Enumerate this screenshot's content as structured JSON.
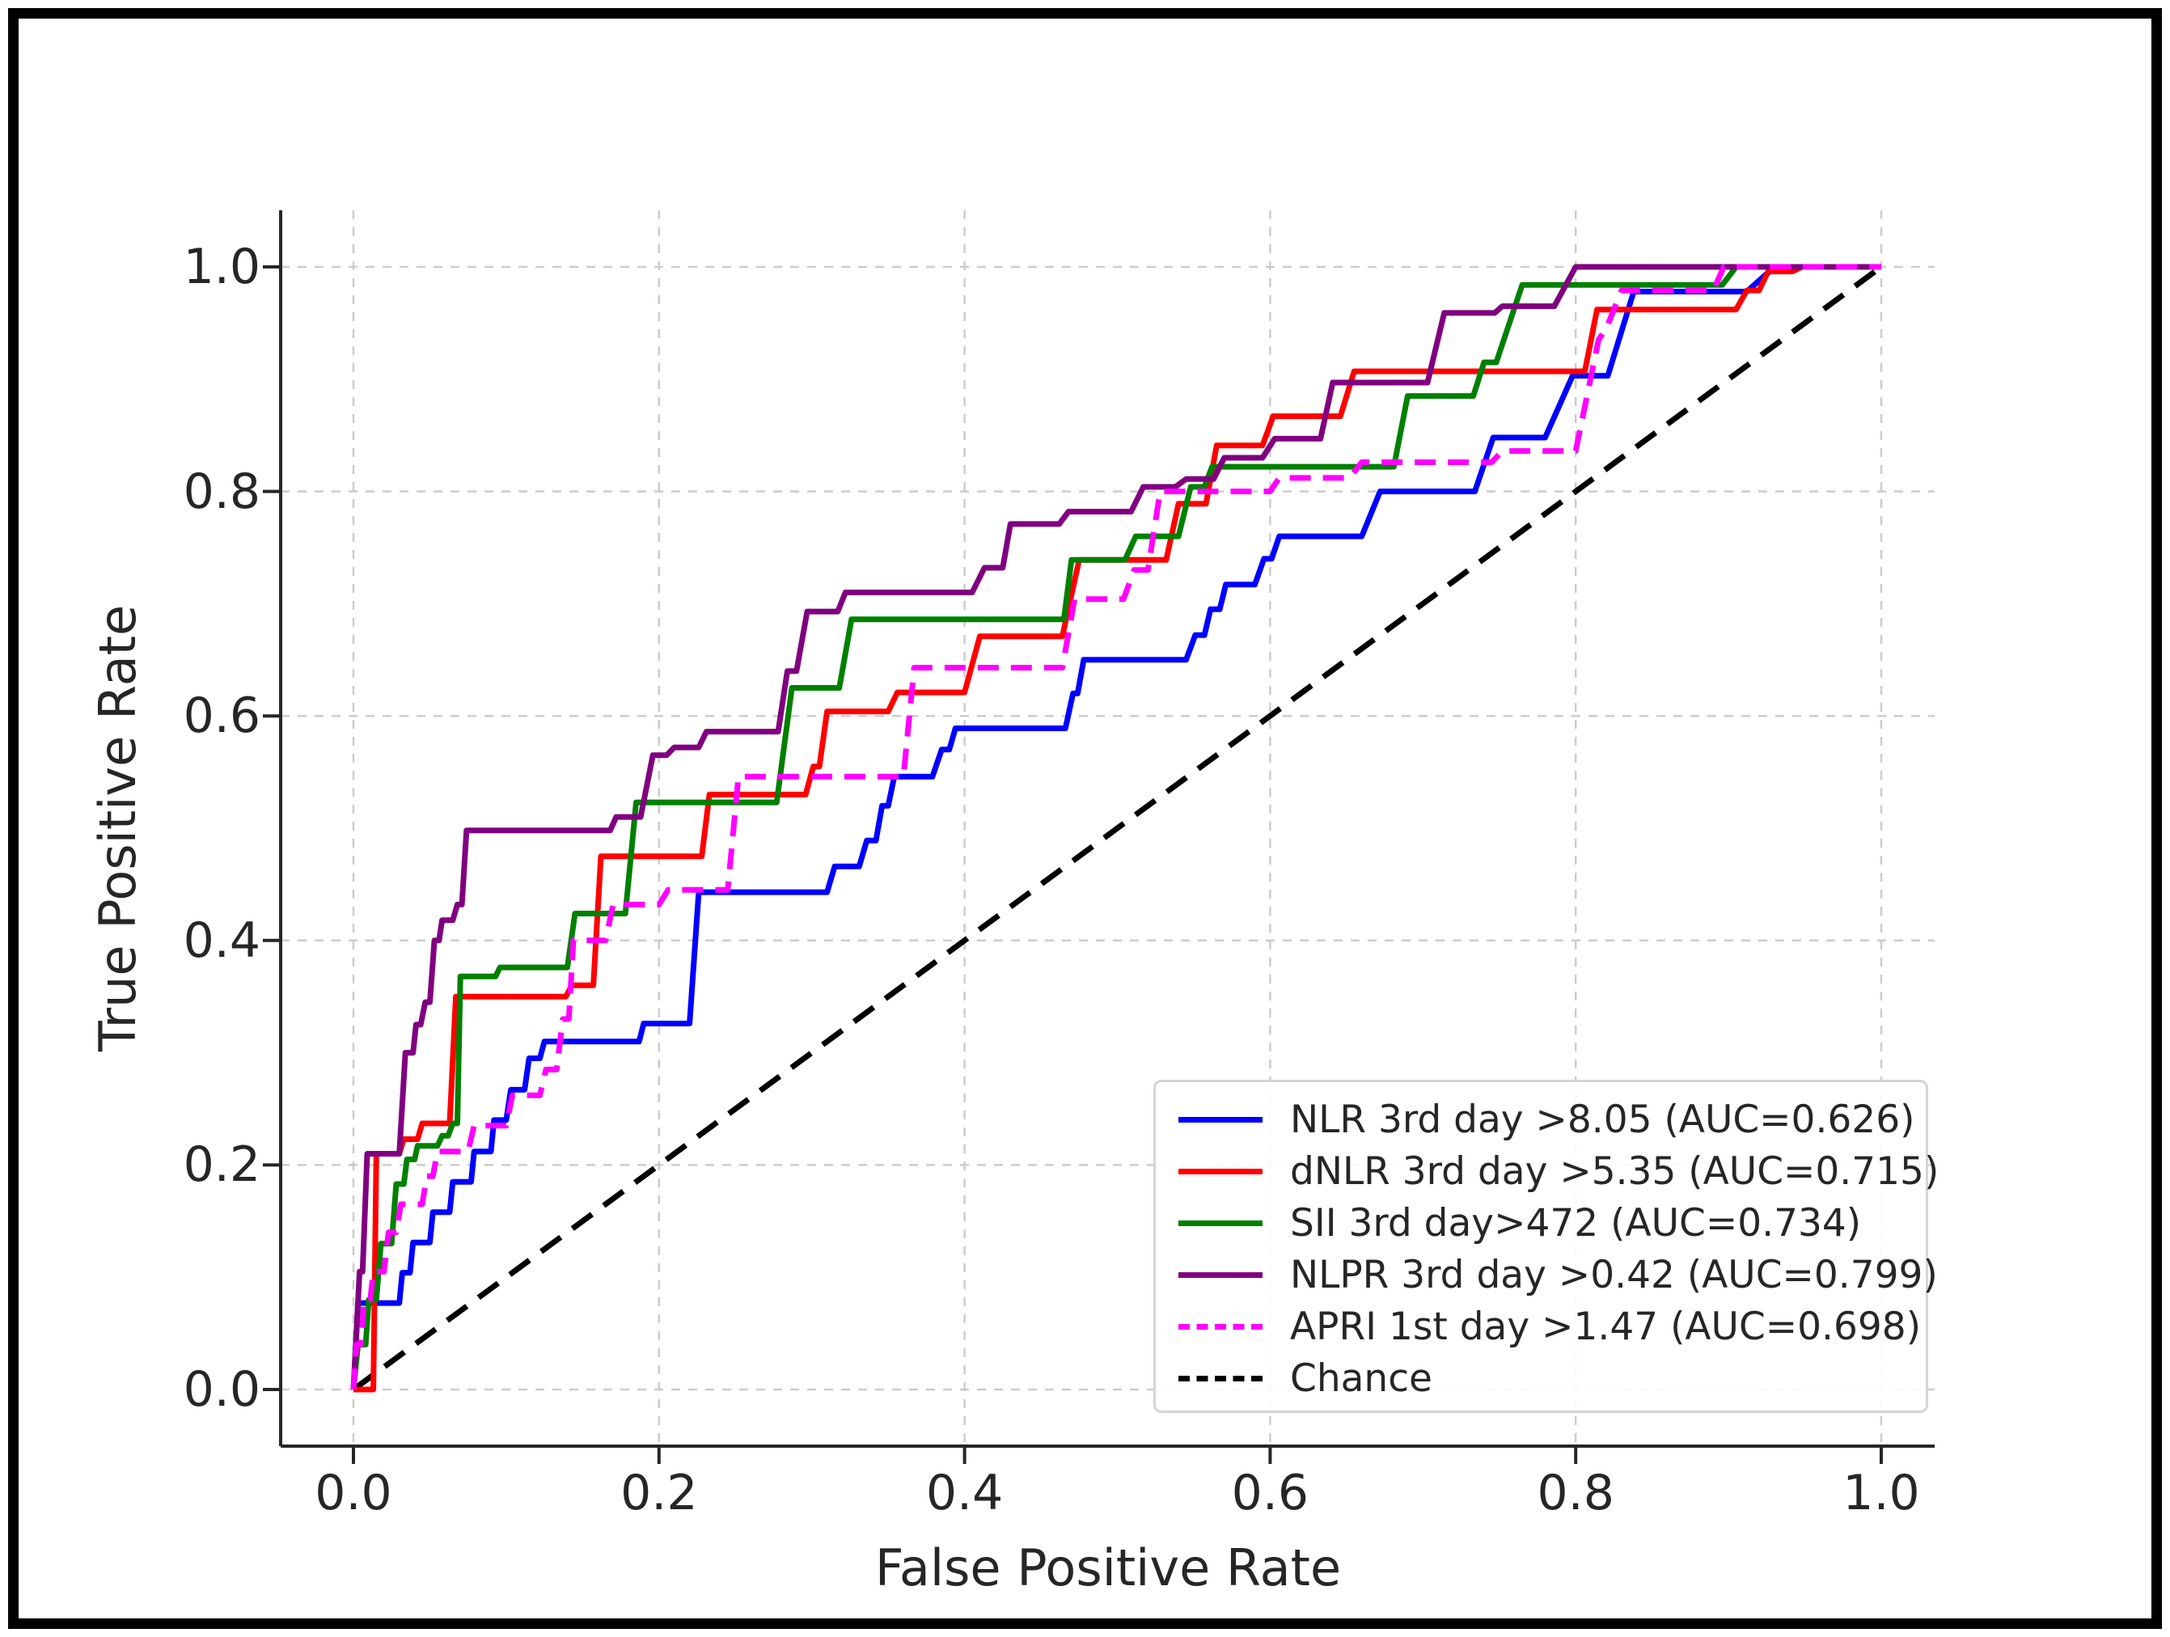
{
  "figure": {
    "background": "#ffffff",
    "border_color": "#000000"
  },
  "chart_data": {
    "type": "line",
    "subtype": "roc-curves",
    "title": "",
    "xlabel": "False Positive Rate",
    "ylabel": "True Positive Rate",
    "xlim": [
      -0.05,
      1.05
    ],
    "ylim": [
      -0.05,
      1.05
    ],
    "grid": true,
    "grid_color": "#cccccc",
    "legend_position": "lower right",
    "x_ticks": {
      "values": [
        0.0,
        0.2,
        0.4,
        0.6,
        0.8,
        1.0
      ],
      "labels": [
        "0.0",
        "0.2",
        "0.4",
        "0.6",
        "0.8",
        "1.0"
      ]
    },
    "y_ticks": {
      "values": [
        0.0,
        0.2,
        0.4,
        0.6,
        0.8,
        1.0
      ],
      "labels": [
        "0.0",
        "0.2",
        "0.4",
        "0.6",
        "0.8",
        "1.0"
      ]
    },
    "series": [
      {
        "name": "nlr",
        "label": "NLR 3rd day >8.05 (AUC=0.626)",
        "auc": 0.626,
        "color": "#0000ff",
        "style": "solid",
        "points": [
          [
            0,
            0
          ],
          [
            0.003,
            0.077
          ],
          [
            0.03,
            0.077
          ],
          [
            0.032,
            0.104
          ],
          [
            0.037,
            0.104
          ],
          [
            0.039,
            0.131
          ],
          [
            0.05,
            0.131
          ],
          [
            0.052,
            0.158
          ],
          [
            0.063,
            0.158
          ],
          [
            0.065,
            0.185
          ],
          [
            0.077,
            0.185
          ],
          [
            0.079,
            0.212
          ],
          [
            0.09,
            0.212
          ],
          [
            0.092,
            0.24
          ],
          [
            0.1,
            0.24
          ],
          [
            0.103,
            0.267
          ],
          [
            0.112,
            0.267
          ],
          [
            0.115,
            0.295
          ],
          [
            0.122,
            0.295
          ],
          [
            0.125,
            0.31
          ],
          [
            0.187,
            0.31
          ],
          [
            0.19,
            0.326
          ],
          [
            0.22,
            0.326
          ],
          [
            0.226,
            0.443
          ],
          [
            0.31,
            0.443
          ],
          [
            0.315,
            0.466
          ],
          [
            0.331,
            0.466
          ],
          [
            0.336,
            0.489
          ],
          [
            0.342,
            0.489
          ],
          [
            0.346,
            0.52
          ],
          [
            0.35,
            0.52
          ],
          [
            0.354,
            0.546
          ],
          [
            0.379,
            0.546
          ],
          [
            0.385,
            0.57
          ],
          [
            0.39,
            0.57
          ],
          [
            0.394,
            0.589
          ],
          [
            0.466,
            0.589
          ],
          [
            0.471,
            0.62
          ],
          [
            0.474,
            0.62
          ],
          [
            0.478,
            0.65
          ],
          [
            0.545,
            0.65
          ],
          [
            0.551,
            0.672
          ],
          [
            0.557,
            0.672
          ],
          [
            0.561,
            0.695
          ],
          [
            0.567,
            0.695
          ],
          [
            0.571,
            0.717
          ],
          [
            0.59,
            0.717
          ],
          [
            0.596,
            0.74
          ],
          [
            0.601,
            0.74
          ],
          [
            0.606,
            0.76
          ],
          [
            0.66,
            0.76
          ],
          [
            0.672,
            0.8
          ],
          [
            0.734,
            0.8
          ],
          [
            0.746,
            0.848
          ],
          [
            0.78,
            0.848
          ],
          [
            0.798,
            0.903
          ],
          [
            0.821,
            0.903
          ],
          [
            0.838,
            0.978
          ],
          [
            0.912,
            0.978
          ],
          [
            0.926,
            0.995
          ],
          [
            0.936,
            1
          ],
          [
            1,
            1
          ]
        ]
      },
      {
        "name": "dnlr",
        "label": "dNLR 3rd day >5.35 (AUC=0.715)",
        "auc": 0.715,
        "color": "#ff0000",
        "style": "solid",
        "points": [
          [
            0,
            0
          ],
          [
            0.013,
            0
          ],
          [
            0.015,
            0.21
          ],
          [
            0.03,
            0.21
          ],
          [
            0.033,
            0.223
          ],
          [
            0.042,
            0.223
          ],
          [
            0.045,
            0.237
          ],
          [
            0.063,
            0.237
          ],
          [
            0.067,
            0.35
          ],
          [
            0.139,
            0.35
          ],
          [
            0.143,
            0.36
          ],
          [
            0.157,
            0.36
          ],
          [
            0.162,
            0.475
          ],
          [
            0.228,
            0.475
          ],
          [
            0.233,
            0.53
          ],
          [
            0.296,
            0.53
          ],
          [
            0.301,
            0.555
          ],
          [
            0.305,
            0.555
          ],
          [
            0.31,
            0.604
          ],
          [
            0.35,
            0.604
          ],
          [
            0.356,
            0.621
          ],
          [
            0.4,
            0.621
          ],
          [
            0.41,
            0.671
          ],
          [
            0.464,
            0.671
          ],
          [
            0.475,
            0.739
          ],
          [
            0.532,
            0.739
          ],
          [
            0.54,
            0.789
          ],
          [
            0.558,
            0.789
          ],
          [
            0.565,
            0.841
          ],
          [
            0.595,
            0.841
          ],
          [
            0.602,
            0.867
          ],
          [
            0.646,
            0.867
          ],
          [
            0.655,
            0.907
          ],
          [
            0.806,
            0.907
          ],
          [
            0.814,
            0.962
          ],
          [
            0.905,
            0.962
          ],
          [
            0.912,
            0.979
          ],
          [
            0.92,
            0.979
          ],
          [
            0.926,
            0.996
          ],
          [
            0.942,
            0.996
          ],
          [
            0.948,
            1
          ],
          [
            1,
            1
          ]
        ]
      },
      {
        "name": "sii",
        "label": "SII 3rd day>472 (AUC=0.734)",
        "auc": 0.734,
        "color": "#008000",
        "style": "solid",
        "points": [
          [
            0,
            0
          ],
          [
            0.003,
            0.04
          ],
          [
            0.008,
            0.04
          ],
          [
            0.01,
            0.08
          ],
          [
            0.015,
            0.08
          ],
          [
            0.018,
            0.13
          ],
          [
            0.025,
            0.13
          ],
          [
            0.028,
            0.183
          ],
          [
            0.033,
            0.183
          ],
          [
            0.035,
            0.205
          ],
          [
            0.04,
            0.205
          ],
          [
            0.042,
            0.217
          ],
          [
            0.055,
            0.217
          ],
          [
            0.058,
            0.226
          ],
          [
            0.062,
            0.226
          ],
          [
            0.065,
            0.237
          ],
          [
            0.068,
            0.237
          ],
          [
            0.07,
            0.368
          ],
          [
            0.093,
            0.368
          ],
          [
            0.096,
            0.376
          ],
          [
            0.14,
            0.376
          ],
          [
            0.145,
            0.424
          ],
          [
            0.178,
            0.424
          ],
          [
            0.185,
            0.523
          ],
          [
            0.277,
            0.523
          ],
          [
            0.287,
            0.625
          ],
          [
            0.318,
            0.625
          ],
          [
            0.326,
            0.686
          ],
          [
            0.465,
            0.686
          ],
          [
            0.47,
            0.739
          ],
          [
            0.505,
            0.739
          ],
          [
            0.512,
            0.76
          ],
          [
            0.54,
            0.76
          ],
          [
            0.548,
            0.804
          ],
          [
            0.557,
            0.804
          ],
          [
            0.562,
            0.822
          ],
          [
            0.681,
            0.822
          ],
          [
            0.69,
            0.885
          ],
          [
            0.733,
            0.885
          ],
          [
            0.74,
            0.915
          ],
          [
            0.748,
            0.915
          ],
          [
            0.765,
            0.984
          ],
          [
            0.896,
            0.984
          ],
          [
            0.905,
            1
          ],
          [
            1,
            1
          ]
        ]
      },
      {
        "name": "nlpr",
        "label": "NLPR 3rd day >0.42 (AUC=0.799)",
        "auc": 0.799,
        "color": "#800080",
        "style": "solid",
        "points": [
          [
            0,
            0
          ],
          [
            0.004,
            0.105
          ],
          [
            0.006,
            0.105
          ],
          [
            0.009,
            0.21
          ],
          [
            0.03,
            0.21
          ],
          [
            0.034,
            0.3
          ],
          [
            0.039,
            0.3
          ],
          [
            0.041,
            0.325
          ],
          [
            0.044,
            0.325
          ],
          [
            0.047,
            0.345
          ],
          [
            0.05,
            0.345
          ],
          [
            0.053,
            0.4
          ],
          [
            0.056,
            0.4
          ],
          [
            0.058,
            0.418
          ],
          [
            0.065,
            0.418
          ],
          [
            0.068,
            0.432
          ],
          [
            0.071,
            0.432
          ],
          [
            0.074,
            0.498
          ],
          [
            0.168,
            0.498
          ],
          [
            0.172,
            0.51
          ],
          [
            0.188,
            0.51
          ],
          [
            0.196,
            0.565
          ],
          [
            0.205,
            0.565
          ],
          [
            0.21,
            0.572
          ],
          [
            0.226,
            0.572
          ],
          [
            0.231,
            0.586
          ],
          [
            0.278,
            0.586
          ],
          [
            0.284,
            0.64
          ],
          [
            0.29,
            0.64
          ],
          [
            0.297,
            0.693
          ],
          [
            0.317,
            0.693
          ],
          [
            0.322,
            0.71
          ],
          [
            0.405,
            0.71
          ],
          [
            0.413,
            0.732
          ],
          [
            0.425,
            0.732
          ],
          [
            0.43,
            0.771
          ],
          [
            0.462,
            0.771
          ],
          [
            0.468,
            0.782
          ],
          [
            0.509,
            0.782
          ],
          [
            0.517,
            0.804
          ],
          [
            0.538,
            0.804
          ],
          [
            0.545,
            0.811
          ],
          [
            0.563,
            0.811
          ],
          [
            0.57,
            0.83
          ],
          [
            0.595,
            0.83
          ],
          [
            0.603,
            0.847
          ],
          [
            0.633,
            0.847
          ],
          [
            0.641,
            0.897
          ],
          [
            0.703,
            0.897
          ],
          [
            0.714,
            0.959
          ],
          [
            0.747,
            0.959
          ],
          [
            0.752,
            0.965
          ],
          [
            0.786,
            0.965
          ],
          [
            0.8,
            1
          ],
          [
            1,
            1
          ]
        ]
      },
      {
        "name": "apri",
        "label": "APRI 1st day >1.47 (AUC=0.698)",
        "auc": 0.698,
        "color": "#ff00ff",
        "style": "dashed",
        "points": [
          [
            0,
            0
          ],
          [
            0.002,
            0.04
          ],
          [
            0.005,
            0.04
          ],
          [
            0.007,
            0.08
          ],
          [
            0.011,
            0.08
          ],
          [
            0.013,
            0.105
          ],
          [
            0.02,
            0.105
          ],
          [
            0.023,
            0.14
          ],
          [
            0.028,
            0.14
          ],
          [
            0.031,
            0.165
          ],
          [
            0.045,
            0.165
          ],
          [
            0.048,
            0.19
          ],
          [
            0.052,
            0.19
          ],
          [
            0.055,
            0.212
          ],
          [
            0.075,
            0.212
          ],
          [
            0.079,
            0.235
          ],
          [
            0.1,
            0.235
          ],
          [
            0.104,
            0.262
          ],
          [
            0.122,
            0.262
          ],
          [
            0.126,
            0.285
          ],
          [
            0.133,
            0.285
          ],
          [
            0.137,
            0.33
          ],
          [
            0.141,
            0.33
          ],
          [
            0.144,
            0.4
          ],
          [
            0.165,
            0.4
          ],
          [
            0.17,
            0.432
          ],
          [
            0.2,
            0.432
          ],
          [
            0.206,
            0.445
          ],
          [
            0.245,
            0.445
          ],
          [
            0.252,
            0.546
          ],
          [
            0.36,
            0.546
          ],
          [
            0.367,
            0.643
          ],
          [
            0.464,
            0.643
          ],
          [
            0.472,
            0.704
          ],
          [
            0.504,
            0.704
          ],
          [
            0.511,
            0.73
          ],
          [
            0.52,
            0.73
          ],
          [
            0.528,
            0.8
          ],
          [
            0.6,
            0.8
          ],
          [
            0.606,
            0.812
          ],
          [
            0.652,
            0.812
          ],
          [
            0.66,
            0.826
          ],
          [
            0.745,
            0.826
          ],
          [
            0.752,
            0.836
          ],
          [
            0.8,
            0.836
          ],
          [
            0.815,
            0.935
          ],
          [
            0.82,
            0.945
          ],
          [
            0.83,
            0.979
          ],
          [
            0.89,
            0.979
          ],
          [
            0.897,
            1
          ],
          [
            1,
            1
          ]
        ]
      },
      {
        "name": "chance",
        "label": "Chance",
        "color": "#000000",
        "style": "dashed",
        "points": [
          [
            0,
            0
          ],
          [
            1,
            1
          ]
        ]
      }
    ]
  }
}
